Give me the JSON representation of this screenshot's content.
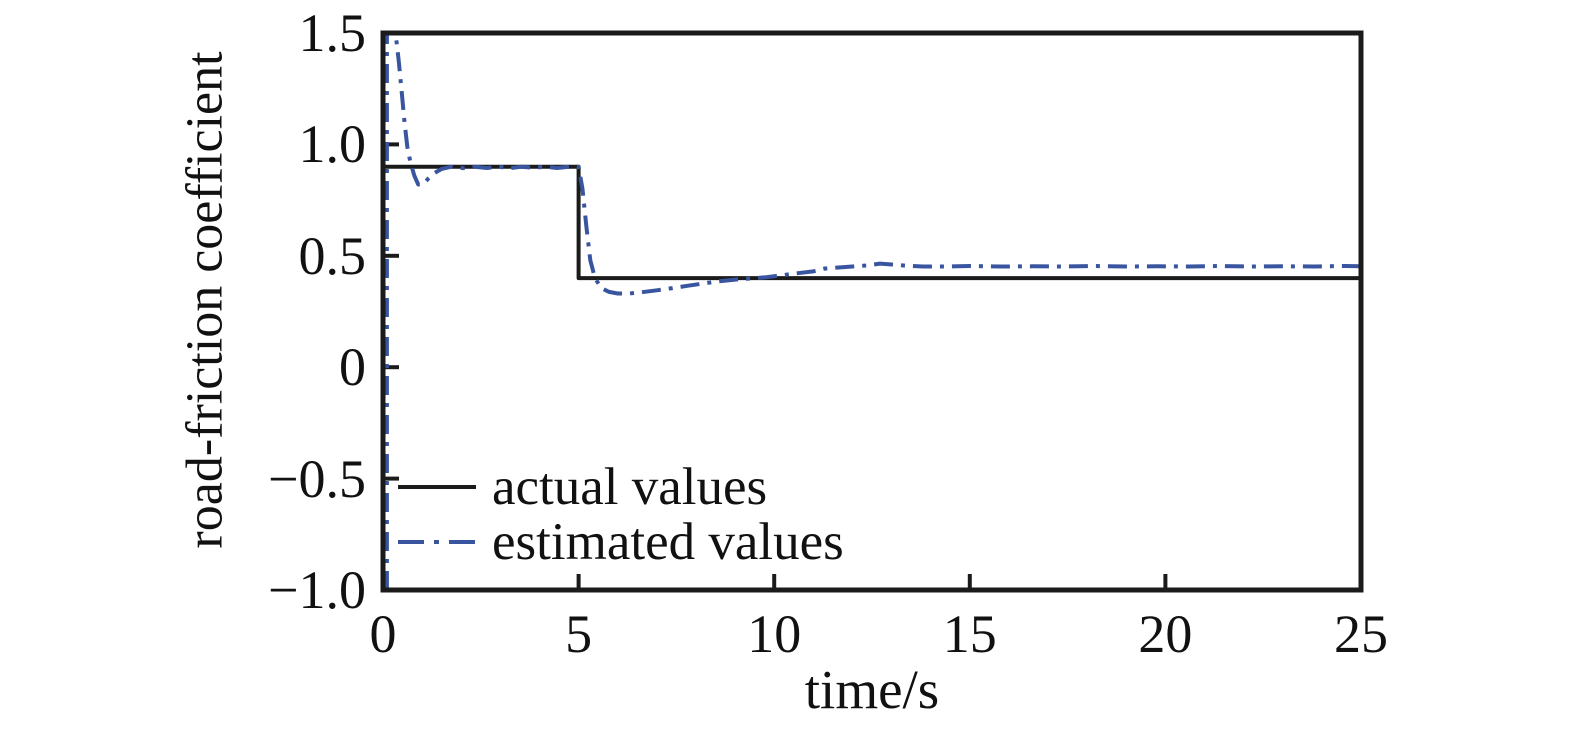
{
  "chart_data": {
    "type": "line",
    "title": "",
    "xlabel": "time/s",
    "ylabel": "road-friction coefficient",
    "xlim": [
      0,
      25
    ],
    "ylim": [
      -1.0,
      1.5
    ],
    "grid": false,
    "legend_position": "inside-lower-left",
    "axis_color": "#1b1b1b",
    "x_ticks": [
      {
        "value": 0,
        "label": "0"
      },
      {
        "value": 5,
        "label": "5"
      },
      {
        "value": 10,
        "label": "10"
      },
      {
        "value": 15,
        "label": "15"
      },
      {
        "value": 20,
        "label": "20"
      },
      {
        "value": 25,
        "label": "25"
      }
    ],
    "y_ticks": [
      {
        "value": 1.5,
        "label": "1.5"
      },
      {
        "value": 1.0,
        "label": "1.0"
      },
      {
        "value": 0.5,
        "label": "0.5"
      },
      {
        "value": 0,
        "label": "0"
      },
      {
        "value": -0.5,
        "label": "−0.5"
      },
      {
        "value": -1.0,
        "label": "−1.0"
      }
    ],
    "series": [
      {
        "name": "actual values",
        "color": "#1b1b1b",
        "style": "solid",
        "points": [
          [
            0,
            0.9
          ],
          [
            5,
            0.9
          ],
          [
            5,
            0.4
          ],
          [
            25,
            0.4
          ]
        ]
      },
      {
        "name": "estimated values",
        "color": "#3a55a0",
        "style": "dash-dot",
        "points": [
          [
            0.1,
            -1.0
          ],
          [
            0.1,
            1.5
          ],
          [
            0.32,
            1.5
          ],
          [
            0.4,
            1.38
          ],
          [
            0.47,
            1.25
          ],
          [
            0.55,
            1.1
          ],
          [
            0.62,
            0.99
          ],
          [
            0.7,
            0.92
          ],
          [
            0.8,
            0.86
          ],
          [
            0.9,
            0.82
          ],
          [
            1.02,
            0.82
          ],
          [
            1.15,
            0.845
          ],
          [
            1.3,
            0.87
          ],
          [
            1.5,
            0.89
          ],
          [
            1.75,
            0.9
          ],
          [
            2.05,
            0.893
          ],
          [
            2.35,
            0.9
          ],
          [
            2.65,
            0.894
          ],
          [
            2.95,
            0.9
          ],
          [
            3.25,
            0.893
          ],
          [
            3.55,
            0.9
          ],
          [
            3.85,
            0.895
          ],
          [
            4.15,
            0.9
          ],
          [
            4.45,
            0.894
          ],
          [
            4.75,
            0.9
          ],
          [
            5.0,
            0.9
          ],
          [
            5.1,
            0.8
          ],
          [
            5.2,
            0.63
          ],
          [
            5.3,
            0.48
          ],
          [
            5.42,
            0.4
          ],
          [
            5.58,
            0.355
          ],
          [
            5.78,
            0.338
          ],
          [
            6.0,
            0.331
          ],
          [
            6.3,
            0.331
          ],
          [
            6.6,
            0.336
          ],
          [
            7.0,
            0.345
          ],
          [
            7.4,
            0.355
          ],
          [
            7.8,
            0.366
          ],
          [
            8.2,
            0.376
          ],
          [
            8.6,
            0.386
          ],
          [
            9.0,
            0.393
          ],
          [
            9.4,
            0.398
          ],
          [
            9.8,
            0.404
          ],
          [
            10.2,
            0.413
          ],
          [
            10.6,
            0.422
          ],
          [
            11.0,
            0.43
          ],
          [
            11.3,
            0.443
          ],
          [
            11.6,
            0.447
          ],
          [
            12.0,
            0.452
          ],
          [
            12.4,
            0.457
          ],
          [
            12.7,
            0.465
          ],
          [
            13.0,
            0.461
          ],
          [
            13.4,
            0.455
          ],
          [
            13.8,
            0.452
          ],
          [
            14.4,
            0.452
          ],
          [
            15.0,
            0.454
          ],
          [
            15.8,
            0.452
          ],
          [
            16.6,
            0.453
          ],
          [
            17.4,
            0.452
          ],
          [
            18.2,
            0.454
          ],
          [
            19.0,
            0.452
          ],
          [
            19.8,
            0.453
          ],
          [
            20.6,
            0.452
          ],
          [
            21.4,
            0.454
          ],
          [
            22.2,
            0.452
          ],
          [
            23.0,
            0.453
          ],
          [
            23.8,
            0.452
          ],
          [
            24.6,
            0.454
          ],
          [
            25.0,
            0.453
          ]
        ]
      }
    ]
  }
}
